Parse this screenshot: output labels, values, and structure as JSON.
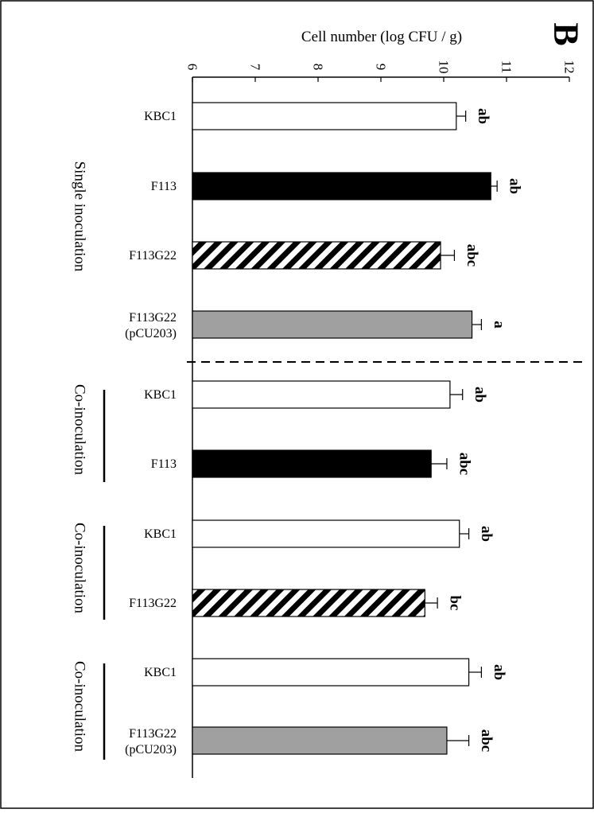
{
  "panel_label": "B",
  "chart_data": {
    "type": "bar",
    "orientation": "horizontal",
    "title": "",
    "xlabel": "Cell number (log CFU / g)",
    "xlim": [
      6,
      12
    ],
    "xticks": [
      "6",
      "7",
      "8",
      "9",
      "10",
      "11",
      "12"
    ],
    "categories": [
      {
        "label": "KBC1",
        "value": 10.2,
        "error": 0.15,
        "letter": "ab",
        "fill": "white"
      },
      {
        "label": "F113",
        "value": 10.75,
        "error": 0.1,
        "letter": "ab",
        "fill": "black"
      },
      {
        "label": "F113G22",
        "value": 9.95,
        "error": 0.22,
        "letter": "abc",
        "fill": "hatched"
      },
      {
        "label": [
          "F113G22",
          "(pCU203)"
        ],
        "value": 10.45,
        "error": 0.15,
        "letter": "a",
        "fill": "gray"
      },
      {
        "label": "KBC1",
        "value": 10.1,
        "error": 0.2,
        "letter": "ab",
        "fill": "white"
      },
      {
        "label": "F113",
        "value": 9.8,
        "error": 0.25,
        "letter": "abc",
        "fill": "black"
      },
      {
        "label": "KBC1",
        "value": 10.25,
        "error": 0.15,
        "letter": "ab",
        "fill": "white"
      },
      {
        "label": "F113G22",
        "value": 9.7,
        "error": 0.2,
        "letter": "bc",
        "fill": "hatched"
      },
      {
        "label": "KBC1",
        "value": 10.4,
        "error": 0.2,
        "letter": "ab",
        "fill": "white"
      },
      {
        "label": [
          "F113G22",
          "(pCU203)"
        ],
        "value": 10.05,
        "error": 0.35,
        "letter": "abc",
        "fill": "gray"
      }
    ],
    "groups": [
      {
        "label": "Single inoculation",
        "bracket": false
      },
      {
        "label": "Co-inoculation",
        "bracket": true
      },
      {
        "label": "Co-inoculation",
        "bracket": true
      },
      {
        "label": "Co-inoculation",
        "bracket": true
      }
    ],
    "colors": {
      "black": "#000000",
      "gray": "#a0a0a0",
      "white": "#ffffff"
    },
    "grid": false,
    "legend": "none"
  }
}
